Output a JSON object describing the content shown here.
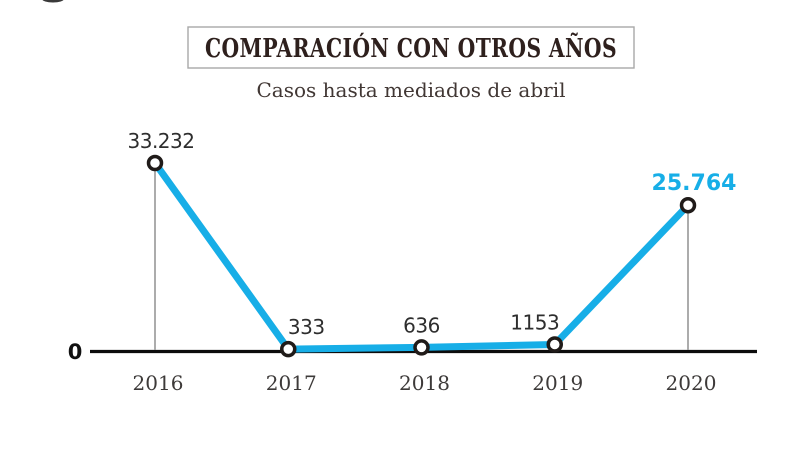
{
  "colors": {
    "accent_cyan": "#17aee7",
    "ink_dark": "#2e201d",
    "axis_black": "#0c0c0c",
    "dropline_gray": "#979797",
    "label_gray": "#2e2e2e",
    "box_border_gray": "#a8a8a8"
  },
  "axis": {
    "zero_label": "0"
  },
  "chart_data": {
    "type": "line",
    "title": "COMPARACIÓN CON OTROS AÑOS",
    "subtitle": "Casos hasta mediados de abril",
    "categories": [
      "2016",
      "2017",
      "2018",
      "2019",
      "2020"
    ],
    "values": [
      33232,
      333,
      636,
      1153,
      25764
    ],
    "value_labels": [
      "33.232",
      "333",
      "636",
      "1153",
      "25.764"
    ],
    "highlight_index": 4,
    "dropline_indices": [
      0,
      4
    ],
    "ylim": [
      0,
      33232
    ],
    "xlabel": "",
    "ylabel": "",
    "grid": false,
    "legend": "none",
    "marker_style": "open-circle",
    "baseline_label": "0"
  }
}
